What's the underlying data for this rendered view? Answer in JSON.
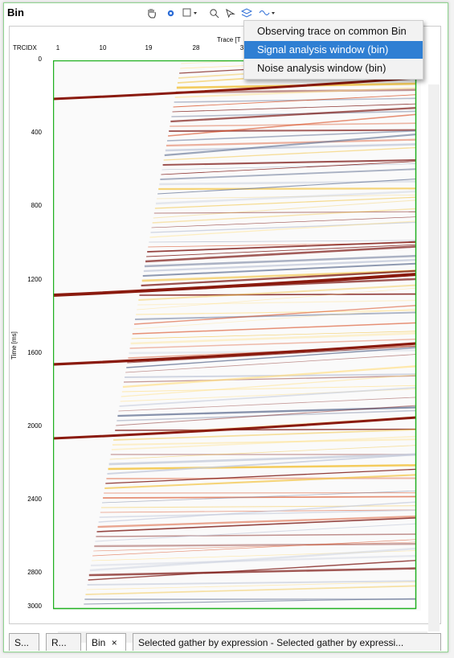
{
  "window": {
    "title": "Bin"
  },
  "plot": {
    "x_axis_header": "TRCIDX",
    "x_axis_title": "Trace [T",
    "y_axis_title": "Time [ms]",
    "x_ticks": [
      "1",
      "10",
      "19",
      "28",
      "3"
    ],
    "y_ticks": [
      "0",
      "400",
      "800",
      "1200",
      "1600",
      "2000",
      "2400",
      "2800",
      "3000"
    ]
  },
  "context_menu": {
    "items": [
      {
        "label": "Observing trace on common Bin"
      },
      {
        "label": "Signal analysis window (bin)"
      },
      {
        "label": "Noise analysis window (bin)"
      }
    ],
    "selected_index": 1
  },
  "tabs": [
    {
      "label": "S..."
    },
    {
      "label": "R..."
    },
    {
      "label": "Bin"
    },
    {
      "label": "Selected gather by expression - Selected gather by expressi..."
    }
  ],
  "tab_close_glyph": "×",
  "colors": {
    "accent_green": "#20b020",
    "menu_selected": "#2f7fd3"
  }
}
